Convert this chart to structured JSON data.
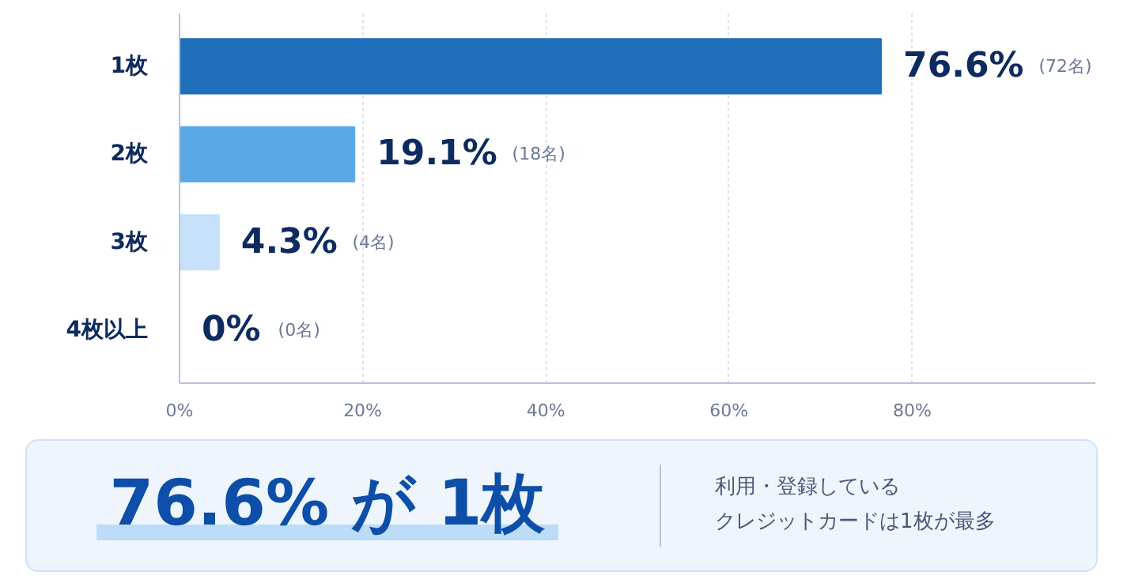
{
  "chart_data": {
    "type": "bar",
    "orientation": "horizontal",
    "categories": [
      "1枚",
      "2枚",
      "3枚",
      "4枚以上"
    ],
    "values": [
      76.6,
      19.1,
      4.3,
      0
    ],
    "colors": [
      "#1f6fba",
      "#5aa9e6",
      "#c5e0f9",
      "#dbeafb"
    ],
    "value_labels": [
      "76.6% (72名)",
      "19.1% (18名)",
      "4.3% (4名)",
      "0% (0名)"
    ],
    "xlim": [
      0,
      100
    ],
    "xticks": [
      {
        "value": 0,
        "label": "0%"
      },
      {
        "value": 20,
        "label": "20%"
      },
      {
        "value": 40,
        "label": "40%"
      },
      {
        "value": 60,
        "label": "60%"
      },
      {
        "value": 80,
        "label": "80%"
      }
    ],
    "grid": "x",
    "annotations": [
      "76.6% が 1枚",
      "利用・登録している",
      "クレジットカードは1枚が最多"
    ]
  }
}
